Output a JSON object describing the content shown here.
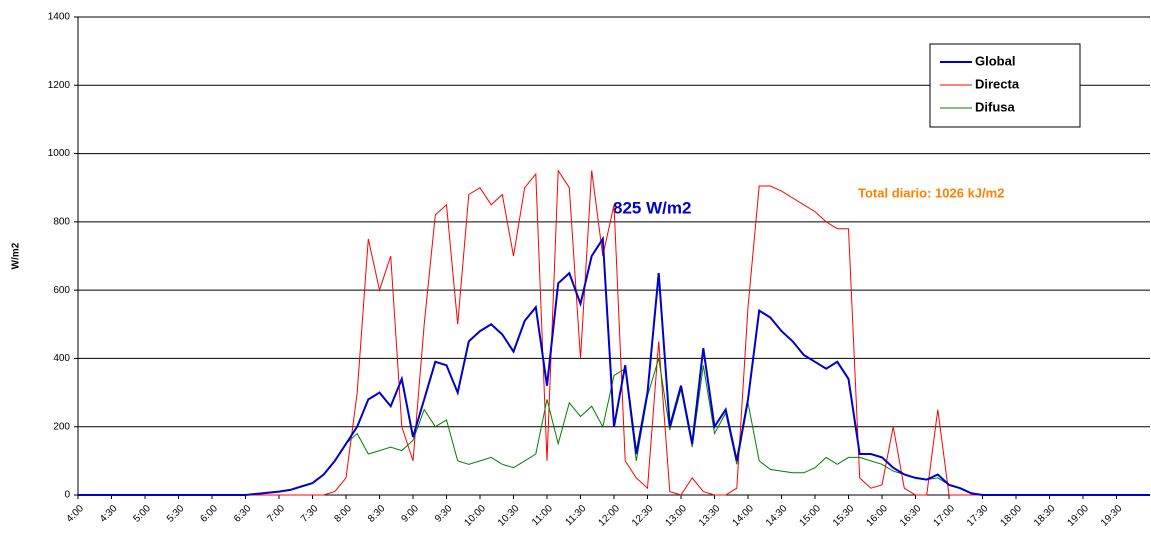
{
  "chart_data": {
    "type": "line",
    "y_label": "W/m2",
    "annotations": [
      "825  W/m2",
      "Total diario:  1026  kJ/m2"
    ],
    "x": [
      240,
      390,
      420,
      430,
      440,
      450,
      460,
      470,
      480,
      490,
      500,
      510,
      520,
      530,
      540,
      550,
      560,
      570,
      580,
      590,
      600,
      610,
      620,
      630,
      640,
      650,
      660,
      670,
      680,
      690,
      700,
      710,
      720,
      730,
      740,
      750,
      760,
      770,
      780,
      790,
      800,
      810,
      820,
      830,
      840,
      850,
      860,
      870,
      880,
      890,
      900,
      910,
      920,
      930,
      940,
      950,
      960,
      970,
      980,
      990,
      1000,
      1010,
      1020,
      1030,
      1040,
      1050,
      1080,
      1200
    ],
    "series": [
      {
        "name": "Global",
        "color": "#0000cc",
        "values": [
          0,
          0,
          10,
          15,
          25,
          35,
          60,
          100,
          150,
          200,
          280,
          300,
          260,
          340,
          170,
          280,
          390,
          380,
          300,
          450,
          480,
          500,
          470,
          420,
          510,
          550,
          320,
          620,
          650,
          560,
          700,
          750,
          200,
          380,
          120,
          300,
          650,
          200,
          320,
          150,
          430,
          200,
          250,
          100,
          280,
          540,
          520,
          480,
          450,
          410,
          390,
          370,
          390,
          340,
          120,
          120,
          110,
          80,
          60,
          50,
          45,
          60,
          30,
          20,
          5,
          0,
          0,
          0
        ]
      },
      {
        "name": "Directa",
        "color": "#ff0000",
        "values": [
          0,
          0,
          0,
          0,
          0,
          0,
          0,
          10,
          50,
          300,
          750,
          600,
          700,
          200,
          100,
          500,
          820,
          850,
          500,
          880,
          900,
          850,
          880,
          700,
          900,
          940,
          100,
          950,
          900,
          400,
          950,
          700,
          850,
          100,
          50,
          20,
          450,
          10,
          0,
          50,
          10,
          0,
          0,
          20,
          550,
          905,
          905,
          890,
          870,
          850,
          830,
          800,
          780,
          780,
          50,
          20,
          30,
          200,
          20,
          0,
          0,
          250,
          0,
          0,
          0,
          0,
          0,
          0
        ]
      },
      {
        "name": "Difusa",
        "color": "#008000",
        "values": [
          0,
          0,
          10,
          15,
          25,
          35,
          60,
          100,
          150,
          180,
          120,
          130,
          140,
          130,
          160,
          250,
          200,
          220,
          100,
          90,
          100,
          110,
          90,
          80,
          100,
          120,
          280,
          150,
          270,
          230,
          260,
          200,
          350,
          370,
          100,
          290,
          400,
          190,
          310,
          140,
          380,
          180,
          240,
          90,
          270,
          100,
          75,
          70,
          65,
          65,
          80,
          110,
          90,
          110,
          110,
          100,
          90,
          70,
          60,
          50,
          45,
          50,
          30,
          20,
          5,
          0,
          0,
          0
        ]
      }
    ],
    "xlim": [
      240,
      1200
    ],
    "xticks": [
      {
        "value": 240,
        "label": "4:00"
      },
      {
        "value": 270,
        "label": "4:30"
      },
      {
        "value": 300,
        "label": "5:00"
      },
      {
        "value": 330,
        "label": "5:30"
      },
      {
        "value": 360,
        "label": "6:00"
      },
      {
        "value": 390,
        "label": "6:30"
      },
      {
        "value": 420,
        "label": "7:00"
      },
      {
        "value": 450,
        "label": "7:30"
      },
      {
        "value": 480,
        "label": "8:00"
      },
      {
        "value": 510,
        "label": "8:30"
      },
      {
        "value": 540,
        "label": "9:00"
      },
      {
        "value": 570,
        "label": "9:30"
      },
      {
        "value": 600,
        "label": "10:00"
      },
      {
        "value": 630,
        "label": "10:30"
      },
      {
        "value": 660,
        "label": "11:00"
      },
      {
        "value": 690,
        "label": "11:30"
      },
      {
        "value": 720,
        "label": "12:00"
      },
      {
        "value": 750,
        "label": "12:30"
      },
      {
        "value": 780,
        "label": "13:00"
      },
      {
        "value": 810,
        "label": "13:30"
      },
      {
        "value": 840,
        "label": "14:00"
      },
      {
        "value": 870,
        "label": "14:30"
      },
      {
        "value": 900,
        "label": "15:00"
      },
      {
        "value": 930,
        "label": "15:30"
      },
      {
        "value": 960,
        "label": "16:00"
      },
      {
        "value": 990,
        "label": "16:30"
      },
      {
        "value": 1020,
        "label": "17:00"
      },
      {
        "value": 1050,
        "label": "17:30"
      },
      {
        "value": 1080,
        "label": "18:00"
      },
      {
        "value": 1110,
        "label": "18:30"
      },
      {
        "value": 1140,
        "label": "19:00"
      },
      {
        "value": 1170,
        "label": "19:30"
      }
    ],
    "ylim": [
      0,
      1400
    ],
    "yticks": [
      0,
      200,
      400,
      600,
      800,
      1000,
      1200,
      1400
    ],
    "grid": true,
    "legend": "top-right"
  }
}
